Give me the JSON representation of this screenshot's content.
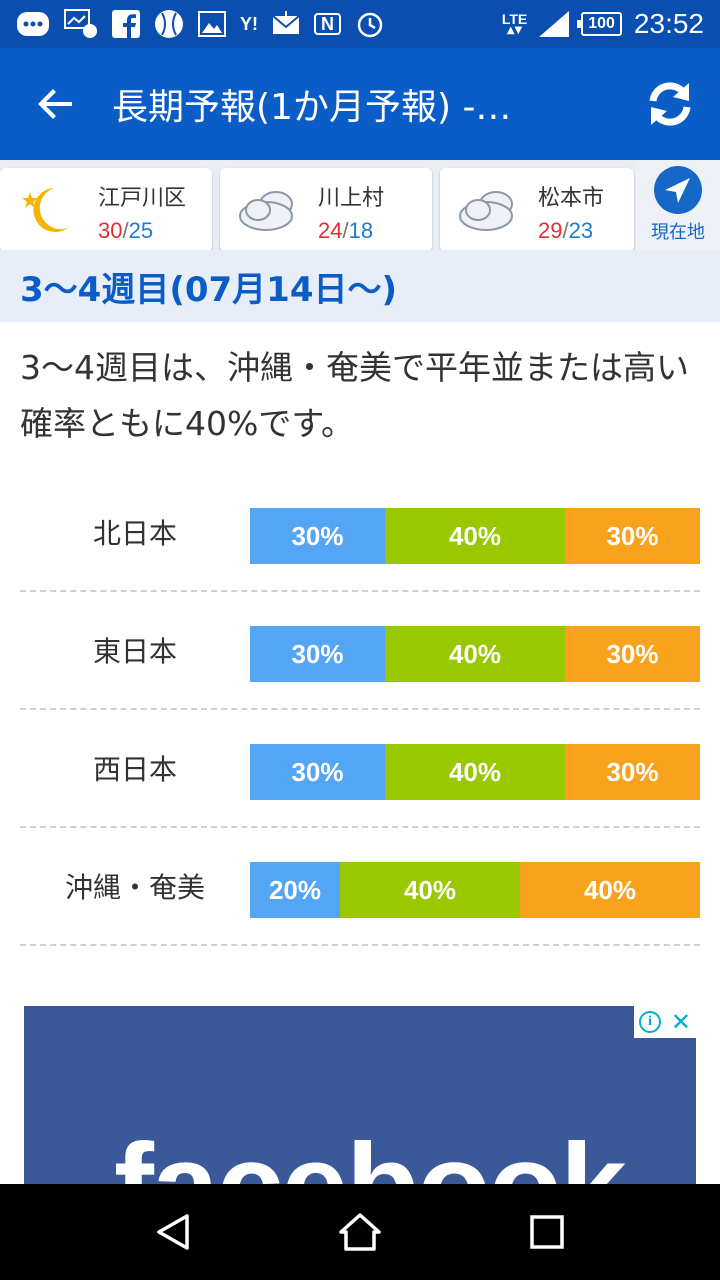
{
  "status_bar": {
    "icons": [
      "message-icon",
      "gallery-badge-icon",
      "facebook-icon",
      "baseball-icon",
      "image-icon",
      "yahoo-icon",
      "mail-icon",
      "nfc-icon",
      "alarm-icon",
      "lte-icon",
      "signal-icon",
      "battery-icon"
    ],
    "yahoo_text": "Y!",
    "nfc_text": "N",
    "network": "LTE",
    "battery": "100",
    "time": "23:52"
  },
  "app_bar": {
    "title": "長期予報(1か月予報) -…",
    "background": "#0a5cc7"
  },
  "locations": [
    {
      "name": "江戸川区",
      "high": "30",
      "low": "25",
      "icon": "moon-icon"
    },
    {
      "name": "川上村",
      "high": "24",
      "low": "18",
      "icon": "cloud-icon"
    },
    {
      "name": "松本市",
      "high": "29",
      "low": "23",
      "icon": "cloud-icon"
    }
  ],
  "temp_separator": "/",
  "current_location_label": "現在地",
  "section": {
    "heading": "3〜4週目(07月14日〜)",
    "description": "3〜4週目は、沖縄・奄美で平年並または高い確率ともに40%です。"
  },
  "colors": {
    "low": "#55a5f5",
    "normal": "#99c800",
    "high": "#f8a21e"
  },
  "regions": [
    {
      "name": "北日本",
      "low": 30,
      "normal": 40,
      "high": 30,
      "low_label": "30%",
      "normal_label": "40%",
      "high_label": "30%"
    },
    {
      "name": "東日本",
      "low": 30,
      "normal": 40,
      "high": 30,
      "low_label": "30%",
      "normal_label": "40%",
      "high_label": "30%"
    },
    {
      "name": "西日本",
      "low": 30,
      "normal": 40,
      "high": 30,
      "low_label": "30%",
      "normal_label": "40%",
      "high_label": "30%"
    },
    {
      "name": "沖縄・奄美",
      "low": 20,
      "normal": 40,
      "high": 40,
      "low_label": "20%",
      "normal_label": "40%",
      "high_label": "40%"
    }
  ],
  "ad": {
    "text": "facebook",
    "info_label": "i",
    "close_label": "✕"
  }
}
